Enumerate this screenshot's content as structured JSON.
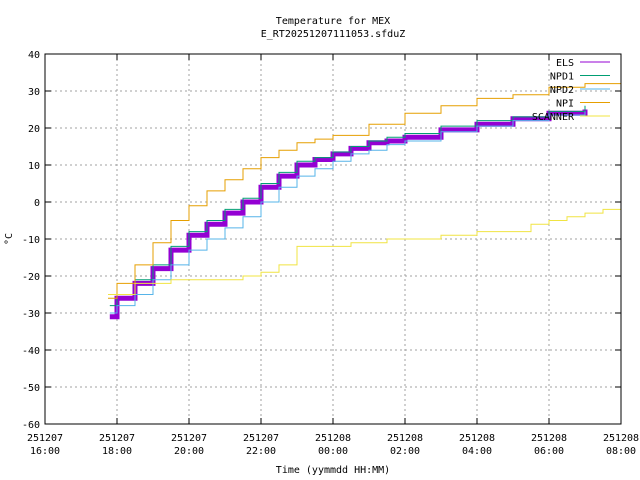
{
  "chart_data": {
    "type": "line",
    "title": "Temperature for MEX",
    "subtitle": "E_RT20251207111053.sfduZ",
    "xlabel": "Time (yymmdd HH:MM)",
    "ylabel": "°C",
    "x_units": "hours since 251207 16:00",
    "xlim": [
      0,
      16
    ],
    "ylim": [
      -60,
      40
    ],
    "grid": true,
    "legend_position": "top-right",
    "x_ticks": [
      {
        "x": 0,
        "date": "251207",
        "time": "16:00"
      },
      {
        "x": 2,
        "date": "251207",
        "time": "18:00"
      },
      {
        "x": 4,
        "date": "251207",
        "time": "20:00"
      },
      {
        "x": 6,
        "date": "251207",
        "time": "22:00"
      },
      {
        "x": 8,
        "date": "251208",
        "time": "00:00"
      },
      {
        "x": 10,
        "date": "251208",
        "time": "02:00"
      },
      {
        "x": 12,
        "date": "251208",
        "time": "04:00"
      },
      {
        "x": 14,
        "date": "251208",
        "time": "06:00"
      },
      {
        "x": 16,
        "date": "251208",
        "time": "08:00"
      }
    ],
    "y_ticks": [
      40,
      30,
      20,
      10,
      0,
      -10,
      -20,
      -30,
      -40,
      -50,
      -60
    ],
    "series": [
      {
        "name": "ELS",
        "color": "#9400d3",
        "width": 5,
        "x": [
          1.8,
          2.0,
          2.5,
          3.0,
          3.5,
          4.0,
          4.5,
          5.0,
          5.5,
          6.0,
          6.5,
          7.0,
          7.5,
          8.0,
          8.5,
          9.0,
          9.5,
          10,
          11,
          12,
          13,
          14,
          15
        ],
        "y": [
          -31,
          -26,
          -22,
          -18,
          -13,
          -9,
          -6,
          -3,
          0,
          4,
          7,
          10,
          11.5,
          13,
          14.5,
          16,
          16.5,
          17.5,
          19.5,
          21,
          22.5,
          24,
          25
        ]
      },
      {
        "name": "NPD1",
        "color": "#009e73",
        "width": 1,
        "x": [
          1.8,
          2.0,
          2.5,
          3.0,
          3.5,
          4.0,
          4.5,
          5.0,
          5.5,
          6.0,
          6.5,
          7.0,
          7.5,
          8.0,
          8.5,
          9.0,
          9.5,
          10,
          11,
          12,
          13,
          14,
          15
        ],
        "y": [
          -28,
          -25,
          -21,
          -17,
          -12,
          -8,
          -5,
          -2,
          1,
          5,
          8,
          11,
          12,
          13.5,
          15,
          16.5,
          17.5,
          18.5,
          20.5,
          22,
          23,
          24.5,
          26
        ]
      },
      {
        "name": "NPD2",
        "color": "#56b4e9",
        "width": 1,
        "x": [
          1.8,
          2.0,
          2.5,
          3.0,
          3.5,
          4.0,
          4.5,
          5.0,
          5.5,
          6.0,
          6.5,
          7.0,
          7.5,
          8.0,
          8.5,
          9.0,
          9.5,
          10,
          11,
          12,
          13,
          14,
          15
        ],
        "y": [
          -30,
          -28,
          -25,
          -21,
          -17,
          -13,
          -10,
          -7,
          -4,
          0,
          4,
          7,
          9,
          11,
          13,
          14,
          15.5,
          16.5,
          19,
          20.5,
          22,
          23.5,
          24.5
        ]
      },
      {
        "name": "NPI",
        "color": "#e69f00",
        "width": 1,
        "x": [
          1.75,
          2.0,
          2.5,
          3.0,
          3.5,
          4.0,
          4.5,
          5.0,
          5.5,
          6.0,
          6.5,
          7.0,
          7.5,
          8.0,
          9,
          10,
          11,
          12,
          13,
          14,
          15,
          16
        ],
        "y": [
          -26,
          -22,
          -17,
          -11,
          -5,
          -1,
          3,
          6,
          9,
          12,
          14,
          16,
          17,
          18,
          21,
          24,
          26,
          28,
          29,
          31,
          32,
          33
        ]
      },
      {
        "name": "SCANNER",
        "color": "#f0e442",
        "width": 1,
        "x": [
          1.75,
          2.5,
          3.0,
          3.5,
          4.0,
          5.0,
          5.5,
          6.0,
          6.5,
          7.0,
          8.0,
          8.5,
          9.0,
          9.5,
          10,
          11,
          12,
          13,
          13.5,
          14,
          14.5,
          15,
          15.5,
          16
        ],
        "y": [
          -25,
          -22,
          -22,
          -21,
          -21,
          -21,
          -20,
          -19,
          -17,
          -12,
          -12,
          -11,
          -11,
          -10,
          -10,
          -9,
          -8,
          -8,
          -6,
          -5,
          -4,
          -3,
          -2,
          -2
        ]
      }
    ]
  }
}
